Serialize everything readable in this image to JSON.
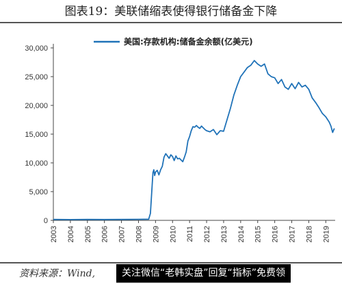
{
  "figure_title": "图表19：美联储缩表使得银行储备金下降",
  "source_note": "资料来源：Wind,",
  "watermark_banner": "关注微信“老韩实盘”回复“指标”免费领",
  "colors": {
    "series": "#1f72b8",
    "axis": "#444444",
    "text": "#333333"
  },
  "chart_data": {
    "type": "line",
    "title": "",
    "xlabel": "",
    "ylabel": "",
    "ylim": [
      0,
      30000
    ],
    "yticks": [
      0,
      5000,
      10000,
      15000,
      20000,
      25000,
      30000
    ],
    "ytick_labels": [
      "0",
      "5,000",
      "10,000",
      "15,000",
      "20,000",
      "25,000",
      "30,000"
    ],
    "xticks": [
      "2003",
      "2004",
      "2005",
      "2006",
      "2007",
      "2008",
      "2009",
      "2010",
      "2011",
      "2012",
      "2013",
      "2014",
      "2015",
      "2016",
      "2017",
      "2018",
      "2019"
    ],
    "xlim": [
      2003.0,
      2019.55
    ],
    "legend_position": "top-center",
    "grid": false,
    "series": [
      {
        "name": "美国:存款机构:储备金余额(亿美元)",
        "x": [
          2003.0,
          2004.0,
          2005.0,
          2006.0,
          2007.0,
          2008.0,
          2008.6,
          2008.7,
          2008.75,
          2008.8,
          2008.85,
          2008.9,
          2008.95,
          2009.0,
          2009.1,
          2009.2,
          2009.3,
          2009.4,
          2009.5,
          2009.6,
          2009.7,
          2009.8,
          2009.9,
          2010.0,
          2010.1,
          2010.2,
          2010.3,
          2010.4,
          2010.5,
          2010.6,
          2010.7,
          2010.8,
          2010.9,
          2011.0,
          2011.1,
          2011.2,
          2011.3,
          2011.4,
          2011.5,
          2011.6,
          2011.7,
          2011.8,
          2011.9,
          2012.0,
          2012.2,
          2012.4,
          2012.6,
          2012.8,
          2013.0,
          2013.2,
          2013.4,
          2013.6,
          2013.8,
          2014.0,
          2014.2,
          2014.4,
          2014.6,
          2014.8,
          2015.0,
          2015.2,
          2015.4,
          2015.6,
          2015.8,
          2016.0,
          2016.2,
          2016.4,
          2016.6,
          2016.8,
          2017.0,
          2017.2,
          2017.4,
          2017.6,
          2017.8,
          2018.0,
          2018.2,
          2018.4,
          2018.6,
          2018.8,
          2019.0,
          2019.2,
          2019.3,
          2019.4,
          2019.5
        ],
        "values": [
          150,
          130,
          160,
          140,
          150,
          180,
          200,
          1200,
          3500,
          6000,
          8300,
          8800,
          7800,
          8400,
          8700,
          7900,
          8800,
          9400,
          11000,
          11600,
          11200,
          10800,
          11400,
          11100,
          10400,
          11200,
          10700,
          10800,
          10500,
          10200,
          11000,
          11900,
          13800,
          14600,
          15600,
          16300,
          16200,
          16500,
          16200,
          16000,
          16400,
          16100,
          15800,
          15600,
          15400,
          15800,
          14900,
          15600,
          15500,
          17500,
          19500,
          21800,
          23500,
          25000,
          25800,
          26600,
          27000,
          27800,
          27200,
          26800,
          27200,
          25500,
          25000,
          24800,
          23800,
          24500,
          23200,
          22800,
          23800,
          22900,
          24000,
          23200,
          23500,
          22800,
          21300,
          20500,
          19600,
          18600,
          18000,
          17100,
          16400,
          15300,
          16000
        ]
      }
    ]
  }
}
